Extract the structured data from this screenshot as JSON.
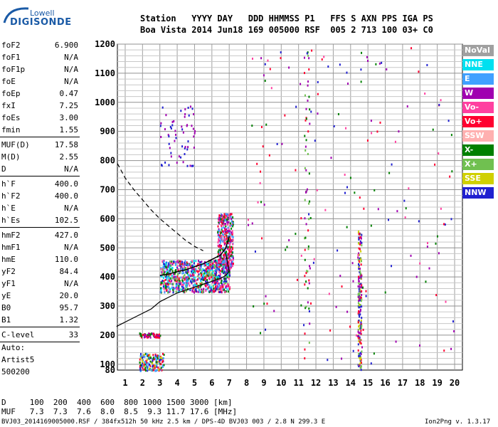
{
  "logo": {
    "top": "Lowell",
    "main": "DIGISONDE"
  },
  "header": {
    "line1": "Station   YYYY DAY   DDD HHMMSS P1   FFS S AXN PPS IGA PS",
    "line2": "Boa Vista 2014 Jun18 169 005000 RSF  005 2 713 100 03+ C0"
  },
  "params": [
    {
      "name": "foF2",
      "value": "6.900"
    },
    {
      "name": "foF1",
      "value": "N/A"
    },
    {
      "name": "foF1p",
      "value": "N/A"
    },
    {
      "name": "foE",
      "value": "N/A"
    },
    {
      "name": "foEp",
      "value": "0.47"
    },
    {
      "name": "fxI",
      "value": "7.25"
    },
    {
      "name": "foEs",
      "value": "3.00"
    },
    {
      "name": "fmin",
      "value": "1.55"
    },
    {
      "name": "MUF(D)",
      "value": "17.58"
    },
    {
      "name": "M(D)",
      "value": "2.55"
    },
    {
      "name": "D",
      "value": "N/A"
    },
    {
      "name": "h`F",
      "value": "400.0"
    },
    {
      "name": "h`F2",
      "value": "400.0"
    },
    {
      "name": "h`E",
      "value": "N/A"
    },
    {
      "name": "h`Es",
      "value": "102.5"
    },
    {
      "name": "hmF2",
      "value": "427.0"
    },
    {
      "name": "hmF1",
      "value": "N/A"
    },
    {
      "name": "hmE",
      "value": "110.0"
    },
    {
      "name": "yF2",
      "value": "84.4"
    },
    {
      "name": "yF1",
      "value": "N/A"
    },
    {
      "name": "yE",
      "value": "20.0"
    },
    {
      "name": "B0",
      "value": "95.7"
    },
    {
      "name": "B1",
      "value": "1.32"
    },
    {
      "name": "C-level",
      "value": "33"
    }
  ],
  "auto": {
    "line1": "Auto:",
    "line2": "Artist5",
    "line3": "500200"
  },
  "legend": [
    {
      "label": "NoVal",
      "color": "#a0a0a0"
    },
    {
      "label": "NNE",
      "color": "#00e0f0"
    },
    {
      "label": "E",
      "color": "#40a0ff"
    },
    {
      "label": "W",
      "color": "#a000b0"
    },
    {
      "label": "Vo-",
      "color": "#ff40a0"
    },
    {
      "label": "Vo+",
      "color": "#ff0030"
    },
    {
      "label": "SSW",
      "color": "#ffb0b0"
    },
    {
      "label": "X-",
      "color": "#008000"
    },
    {
      "label": "X+",
      "color": "#70c050"
    },
    {
      "label": "SSE",
      "color": "#d0d000"
    },
    {
      "label": "NNW",
      "color": "#2020d0"
    }
  ],
  "footer": {
    "d_row": "D     100  200  400  600  800 1000 1500 3000 [km]",
    "muf_row": "MUF   7.3  7.3  7.6  8.0  8.5  9.3 11.7 17.6 [MHz]",
    "file_line": "BVJ03_2014169005000.RSF / 384fx512h 50 kHz 2.5 km / DPS-4D BVJ03 003 / 2.8 N 299.3 E",
    "version": "Ion2Png v. 1.3.17"
  },
  "chart_data": {
    "type": "scatter",
    "x_ticks": [
      1,
      2,
      3,
      4,
      5,
      6,
      7,
      8,
      9,
      10,
      11,
      12,
      13,
      14,
      15,
      16,
      17,
      18,
      19,
      20
    ],
    "y_ticks": [
      80,
      100,
      200,
      300,
      400,
      500,
      600,
      700,
      800,
      900,
      1000,
      1100,
      1200
    ],
    "xlim": [
      0.55,
      20.45
    ],
    "ylim": [
      80,
      1200
    ],
    "grid": true,
    "legend_position": "right",
    "profile_curve": {
      "x": [
        0.5,
        1.5,
        2.5,
        3.0,
        3.5,
        4.0,
        4.5,
        5.0,
        5.5,
        6.0,
        6.5,
        6.8,
        7.0,
        6.9,
        6.8
      ],
      "y": [
        230,
        260,
        290,
        315,
        330,
        345,
        355,
        365,
        375,
        385,
        395,
        405,
        420,
        450,
        480
      ]
    },
    "trace_curve": {
      "x": [
        3.0,
        3.5,
        4.0,
        4.5,
        5.0,
        5.5,
        6.0,
        6.5,
        6.8,
        7.0
      ],
      "y": [
        405,
        410,
        418,
        425,
        435,
        445,
        460,
        475,
        500,
        540
      ]
    },
    "dashed_curve": {
      "x": [
        0.55,
        1.0,
        1.5,
        2.0,
        2.5,
        3.0,
        3.5,
        4.0,
        4.5,
        5.0,
        5.5
      ],
      "y": [
        790,
        740,
        700,
        665,
        630,
        600,
        575,
        550,
        525,
        505,
        490
      ]
    },
    "clusters": [
      {
        "x": [
          3.0,
          7.0
        ],
        "y": [
          350,
          460
        ],
        "n": 900,
        "colors": [
          "#2020d0",
          "#40a0ff",
          "#00e0f0",
          "#008000",
          "#ff0030",
          "#a000b0",
          "#ff40a0",
          "#70c050"
        ]
      },
      {
        "x": [
          6.3,
          7.2
        ],
        "y": [
          430,
          620
        ],
        "n": 400,
        "colors": [
          "#ff0030",
          "#a000b0",
          "#ff40a0",
          "#008000",
          "#40a0ff"
        ]
      },
      {
        "x": [
          3.0,
          5.0
        ],
        "y": [
          780,
          1000
        ],
        "n": 60,
        "colors": [
          "#2020d0",
          "#a000b0"
        ]
      },
      {
        "x": [
          1.8,
          3.2
        ],
        "y": [
          80,
          140
        ],
        "n": 150,
        "colors": [
          "#2020d0",
          "#ff0030",
          "#40a0ff",
          "#d0d000",
          "#008000"
        ]
      },
      {
        "x": [
          1.8,
          3.0
        ],
        "y": [
          195,
          210
        ],
        "n": 60,
        "colors": [
          "#a000b0",
          "#008000",
          "#ff0030"
        ]
      },
      {
        "x": [
          14.4,
          14.6
        ],
        "y": [
          80,
          570
        ],
        "n": 180,
        "colors": [
          "#ff0030",
          "#a000b0",
          "#d0d000",
          "#2020d0",
          "#70c050"
        ]
      },
      {
        "x": [
          11.3,
          11.6
        ],
        "y": [
          120,
          1180
        ],
        "n": 60,
        "colors": [
          "#008000",
          "#70c050",
          "#ff0030",
          "#a000b0"
        ]
      },
      {
        "x": [
          8.0,
          20.0
        ],
        "y": [
          100,
          1200
        ],
        "n": 180,
        "colors": [
          "#ff0030",
          "#a000b0",
          "#ff40a0",
          "#008000",
          "#2020d0"
        ]
      }
    ]
  }
}
